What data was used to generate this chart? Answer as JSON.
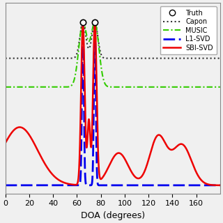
{
  "title": "",
  "xlabel": "DOA (degrees)",
  "ylabel": "",
  "xlim": [
    0,
    180
  ],
  "ylim": [
    -0.05,
    1.12
  ],
  "xticks": [
    0,
    20,
    40,
    60,
    80,
    100,
    120,
    140,
    160
  ],
  "yticks": [],
  "truth_doas": [
    65,
    75
  ],
  "capon_color": "#333333",
  "music_color": "#33cc00",
  "l1svd_color": "#0000ee",
  "sbisvd_color": "#ee0000",
  "background_color": "#f0f0f0",
  "legend_labels": [
    "Truth",
    "Capon",
    "MUSIC",
    "L1-SVD",
    "SBI-SVD"
  ],
  "doa1": 65.0,
  "doa2": 75.0
}
